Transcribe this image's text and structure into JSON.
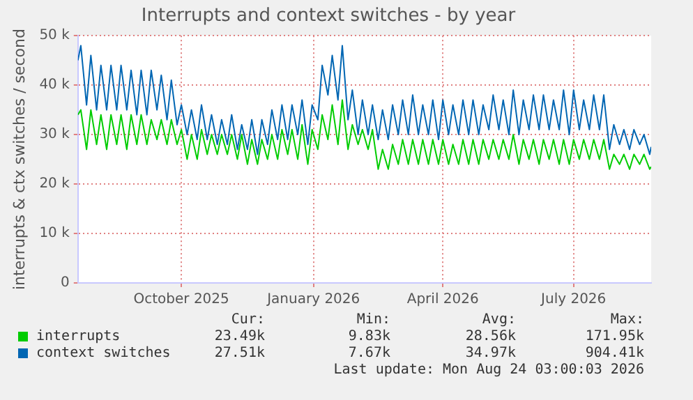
{
  "chart_data": {
    "type": "line",
    "title": "Interrupts and context switches - by year",
    "ylabel": "interrupts & ctx switches / second",
    "x": [
      "2025-07-21",
      "2025-07-23",
      "2025-07-27",
      "2025-07-30",
      "2025-08-03",
      "2025-08-06",
      "2025-08-10",
      "2025-08-13",
      "2025-08-17",
      "2025-08-20",
      "2025-08-24",
      "2025-08-27",
      "2025-08-31",
      "2025-09-03",
      "2025-09-07",
      "2025-09-10",
      "2025-09-14",
      "2025-09-17",
      "2025-09-21",
      "2025-09-24",
      "2025-09-28",
      "2025-10-01",
      "2025-10-05",
      "2025-10-08",
      "2025-10-12",
      "2025-10-15",
      "2025-10-19",
      "2025-10-22",
      "2025-10-26",
      "2025-10-29",
      "2025-11-02",
      "2025-11-05",
      "2025-11-09",
      "2025-11-12",
      "2025-11-16",
      "2025-11-19",
      "2025-11-23",
      "2025-11-26",
      "2025-11-30",
      "2025-12-03",
      "2025-12-07",
      "2025-12-10",
      "2025-12-14",
      "2025-12-17",
      "2025-12-21",
      "2025-12-24",
      "2025-12-28",
      "2025-12-31",
      "2026-01-04",
      "2026-01-07",
      "2026-01-11",
      "2026-01-14",
      "2026-01-18",
      "2026-01-21",
      "2026-01-25",
      "2026-01-28",
      "2026-02-01",
      "2026-02-04",
      "2026-02-08",
      "2026-02-11",
      "2026-02-15",
      "2026-02-18",
      "2026-02-22",
      "2026-02-25",
      "2026-03-01",
      "2026-03-04",
      "2026-03-08",
      "2026-03-11",
      "2026-03-15",
      "2026-03-18",
      "2026-03-22",
      "2026-03-25",
      "2026-03-29",
      "2026-04-01",
      "2026-04-05",
      "2026-04-08",
      "2026-04-12",
      "2026-04-15",
      "2026-04-19",
      "2026-04-22",
      "2026-04-26",
      "2026-04-29",
      "2026-05-03",
      "2026-05-06",
      "2026-05-10",
      "2026-05-13",
      "2026-05-17",
      "2026-05-20",
      "2026-05-24",
      "2026-05-27",
      "2026-05-31",
      "2026-06-03",
      "2026-06-07",
      "2026-06-10",
      "2026-06-14",
      "2026-06-17",
      "2026-06-21",
      "2026-06-24",
      "2026-06-28",
      "2026-07-01",
      "2026-07-05",
      "2026-07-08",
      "2026-07-12",
      "2026-07-15",
      "2026-07-19",
      "2026-07-22",
      "2026-07-26",
      "2026-07-29",
      "2026-08-02",
      "2026-08-05",
      "2026-08-09",
      "2026-08-12",
      "2026-08-16",
      "2026-08-19",
      "2026-08-23",
      "2026-08-24"
    ],
    "series": [
      {
        "name": "interrupts",
        "color": "#00cc00",
        "values": [
          34,
          35,
          27,
          35,
          28,
          34,
          27,
          34,
          28,
          34,
          27,
          34,
          28,
          34,
          28,
          33,
          29,
          33,
          28,
          33,
          28,
          31,
          25,
          30,
          25,
          31,
          26,
          30,
          26,
          30,
          26,
          30,
          25,
          30,
          24,
          29,
          24,
          29,
          25,
          30,
          25,
          31,
          26,
          31,
          25,
          32,
          24,
          31,
          27,
          34,
          29,
          36,
          28,
          37,
          27,
          32,
          28,
          31,
          27,
          31,
          23,
          27,
          23,
          28,
          24,
          29,
          24,
          29,
          24,
          29,
          24,
          29,
          24,
          29,
          24,
          28,
          24,
          29,
          24,
          29,
          24,
          29,
          25,
          29,
          25,
          29,
          25,
          30,
          24,
          29,
          25,
          29,
          24,
          29,
          25,
          29,
          24,
          29,
          24,
          29,
          25,
          29,
          25,
          29,
          25,
          29,
          23,
          26,
          24,
          26,
          23,
          26,
          24,
          26,
          23,
          23.49
        ]
      },
      {
        "name": "context switches",
        "color": "#0066b3",
        "values": [
          45,
          48,
          36,
          46,
          35,
          44,
          35,
          44,
          35,
          44,
          35,
          43,
          34,
          43,
          34,
          43,
          35,
          42,
          33,
          41,
          32,
          36,
          30,
          35,
          29,
          36,
          29,
          34,
          28,
          33,
          28,
          34,
          27,
          32,
          27,
          33,
          26,
          33,
          28,
          35,
          29,
          36,
          29,
          36,
          30,
          37,
          28,
          36,
          33,
          44,
          38,
          46,
          37,
          48,
          33,
          39,
          30,
          37,
          30,
          36,
          29,
          35,
          29,
          36,
          30,
          37,
          30,
          38,
          30,
          36,
          30,
          37,
          29,
          37,
          30,
          36,
          30,
          37,
          30,
          37,
          30,
          36,
          31,
          38,
          31,
          37,
          30,
          39,
          30,
          37,
          31,
          38,
          31,
          38,
          31,
          37,
          31,
          39,
          30,
          39,
          31,
          37,
          31,
          38,
          31,
          38,
          27,
          32,
          28,
          31,
          27,
          31,
          28,
          30,
          26,
          27.51
        ]
      }
    ],
    "xlim": [
      "2025-07-21",
      "2026-08-24"
    ],
    "xticks": [
      {
        "value": "2025-10-01",
        "label": "October 2025"
      },
      {
        "value": "2026-01-01",
        "label": "January 2026"
      },
      {
        "value": "2026-04-01",
        "label": "April 2026"
      },
      {
        "value": "2026-07-01",
        "label": "July 2026"
      }
    ],
    "ylim": [
      0,
      50
    ],
    "yticks": [
      {
        "value": 0,
        "label": "0"
      },
      {
        "value": 10,
        "label": "10 k"
      },
      {
        "value": 20,
        "label": "20 k"
      },
      {
        "value": 30,
        "label": "30 k"
      },
      {
        "value": 40,
        "label": "40 k"
      },
      {
        "value": 50,
        "label": "50 k"
      }
    ],
    "grid": true,
    "legend": "bottom",
    "marker": "none",
    "line_style": "solid",
    "annotations": [
      "Cur:",
      "Min:",
      "Avg:",
      "Max:",
      "23.49k",
      "9.83k",
      "28.56k",
      "171.95k",
      "27.51k",
      "7.67k",
      "34.97k",
      "904.41k",
      "Last update: Mon Aug 24 03:00:03 2026"
    ]
  }
}
